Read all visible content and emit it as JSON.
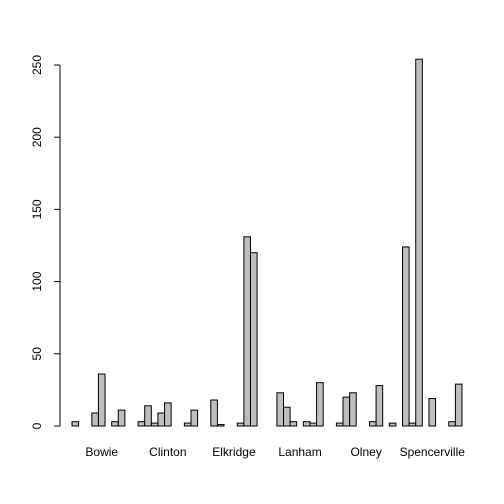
{
  "chart_data": {
    "type": "bar",
    "categories": [
      "Bowie",
      "Clinton",
      "Elkridge",
      "Lanham",
      "Olney",
      "Spencerville"
    ],
    "series": [
      {
        "color": "#bebebe",
        "values": [
          3,
          3,
          0,
          0,
          2,
          124
        ]
      },
      {
        "color": "#bebebe",
        "values": [
          0,
          14,
          18,
          23,
          20,
          2
        ]
      },
      {
        "color": "#bebebe",
        "values": [
          0,
          2,
          1,
          13,
          23,
          254
        ]
      },
      {
        "color": "#bebebe",
        "values": [
          9,
          9,
          0,
          3,
          0,
          0
        ]
      },
      {
        "color": "#bebebe",
        "values": [
          36,
          16,
          0,
          0,
          0,
          19
        ]
      },
      {
        "color": "#bebebe",
        "values": [
          0,
          0,
          2,
          3,
          3,
          0
        ]
      },
      {
        "color": "#bebebe",
        "values": [
          3,
          0,
          131,
          2,
          28,
          0
        ]
      },
      {
        "color": "#bebebe",
        "values": [
          11,
          2,
          120,
          30,
          0,
          3
        ]
      },
      {
        "color": "#bebebe",
        "values": [
          0,
          11,
          0,
          0,
          2,
          29
        ]
      }
    ],
    "ylim": [
      0,
      250
    ],
    "yticks": [
      0,
      50,
      100,
      150,
      200,
      250
    ],
    "grid": false
  }
}
